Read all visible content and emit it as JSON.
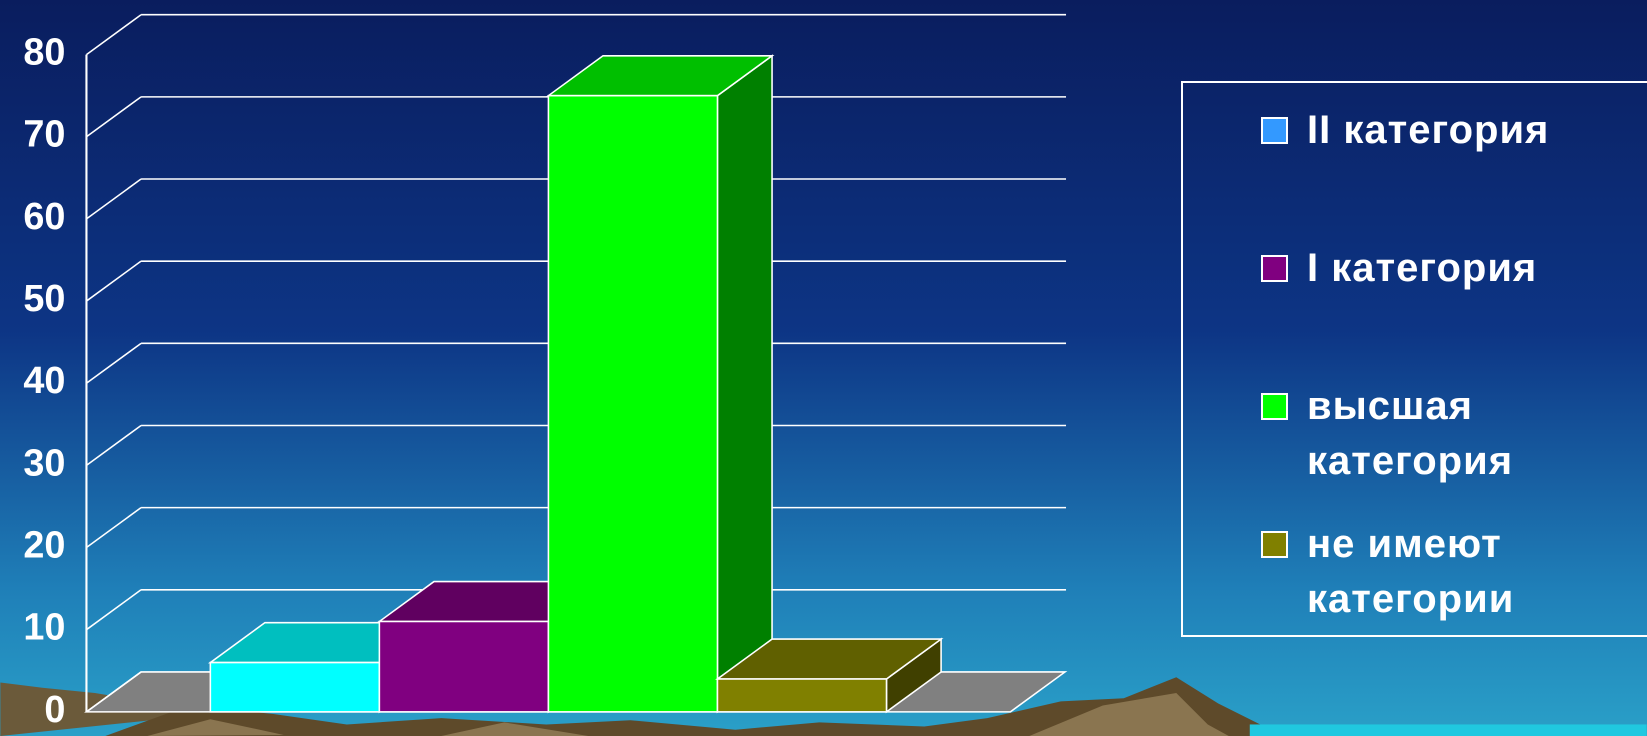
{
  "chart_data": {
    "type": "bar3d",
    "series": [
      {
        "name": "II категория",
        "color": "#00ffff",
        "legend_color": "#3399ff",
        "values": [
          6
        ]
      },
      {
        "name": "I категория",
        "color": "#800080",
        "legend_color": "#800080",
        "values": [
          11
        ]
      },
      {
        "name": "высшая категория",
        "color": "#00ff00",
        "legend_color": "#00ff00",
        "values": [
          75
        ]
      },
      {
        "name": "не имеют категории",
        "color": "#808000",
        "legend_color": "#808000",
        "values": [
          4
        ]
      }
    ],
    "ylim": [
      0,
      80
    ],
    "yticks": [
      0,
      10,
      20,
      30,
      40,
      50,
      60,
      70,
      80
    ],
    "grid": true,
    "legend": "right"
  }
}
